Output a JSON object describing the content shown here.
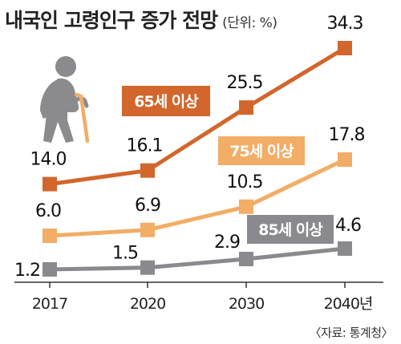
{
  "title": "내국인 고령인구 증가 전망",
  "unit": "(단위: %)",
  "source": "〈자료: 통계청〉",
  "colors": {
    "s65": "#d2662c",
    "s75": "#f2ad66",
    "s85": "#8a8a8e",
    "axis": "#333333",
    "figure": "#8b8b8e"
  },
  "icon": "elderly-person-with-cane-icon",
  "chart_data": {
    "type": "line",
    "categories": [
      "2017",
      "2020",
      "2030",
      "2040년"
    ],
    "series": [
      {
        "name": "65세 이상",
        "values": [
          14.0,
          16.1,
          25.5,
          34.3
        ],
        "labels": [
          "14.0",
          "16.1",
          "25.5",
          "34.3"
        ]
      },
      {
        "name": "75세 이상",
        "values": [
          6.0,
          6.9,
          10.5,
          17.8
        ],
        "labels": [
          "6.0",
          "6.9",
          "10.5",
          "17.8"
        ]
      },
      {
        "name": "85세 이상",
        "values": [
          1.2,
          1.5,
          2.9,
          4.6
        ],
        "labels": [
          "1.2",
          "1.5",
          "2.9",
          "4.6"
        ]
      }
    ],
    "legend": "labels beside lines"
  }
}
